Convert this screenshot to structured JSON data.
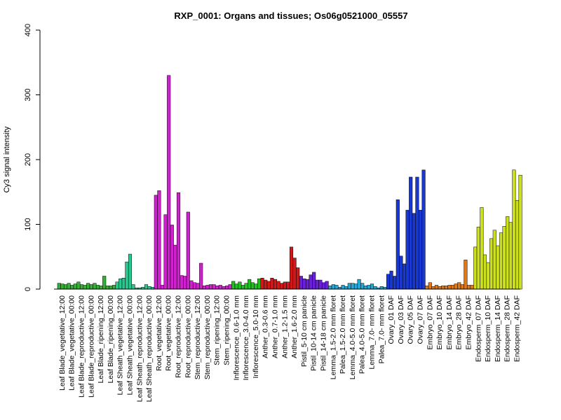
{
  "chart_data": {
    "type": "bar",
    "title": "RXP_0001: Organs and tissues; Os06g0521000_05557",
    "xlabel": "",
    "ylabel": "Cy3 signal intensity",
    "ylim": [
      0,
      400
    ],
    "yticks": [
      0,
      100,
      200,
      300,
      400
    ],
    "grid": false,
    "categories": [
      {
        "label": "Leaf Blade_vegetative_12:00",
        "values": [
          9,
          8,
          7
        ],
        "color": "#35b035"
      },
      {
        "label": "Leaf Blade_vegetative_00:00",
        "values": [
          9,
          6,
          8
        ],
        "color": "#35b035"
      },
      {
        "label": "Leaf Blade_reproductive_12:00",
        "values": [
          11,
          7,
          6
        ],
        "color": "#35b035"
      },
      {
        "label": "Leaf Blade_reproductive_00:00",
        "values": [
          9,
          7,
          9
        ],
        "color": "#35b035"
      },
      {
        "label": "Leaf Blade_ripening_12:00",
        "values": [
          6,
          5,
          20
        ],
        "color": "#35b035"
      },
      {
        "label": "Leaf Blade_ripening_00:00",
        "values": [
          5,
          5,
          6
        ],
        "color": "#35b035"
      },
      {
        "label": "Leaf Sheath_vegetative_12:00",
        "values": [
          11,
          16,
          17
        ],
        "color": "#28c890"
      },
      {
        "label": "Leaf Sheath_vegetative_00:00",
        "values": [
          42,
          54,
          7
        ],
        "color": "#28c890"
      },
      {
        "label": "Leaf Sheath_reproductive_12:00",
        "values": [
          2,
          2,
          3
        ],
        "color": "#28c890"
      },
      {
        "label": "Leaf Sheath_reproductive_00:00",
        "values": [
          7,
          4,
          3
        ],
        "color": "#28c890"
      },
      {
        "label": "Root_vegetative_12:00",
        "values": [
          145,
          152,
          6
        ],
        "color": "#d020d0"
      },
      {
        "label": "Root_vegetative_00:00",
        "values": [
          115,
          330,
          99
        ],
        "color": "#d020d0"
      },
      {
        "label": "Root_reproductive_12:00",
        "values": [
          68,
          149,
          21
        ],
        "color": "#d020d0"
      },
      {
        "label": "Root_reproductive_00:00",
        "values": [
          20,
          119,
          13
        ],
        "color": "#d020d0"
      },
      {
        "label": "Stem_reproductive_12:00",
        "values": [
          10,
          9,
          40
        ],
        "color": "#d020d0"
      },
      {
        "label": "Stem_reproductive_00:00",
        "values": [
          5,
          6,
          7
        ],
        "color": "#d020d0"
      },
      {
        "label": "Stem_ripening_12:00",
        "values": [
          7,
          5,
          6
        ],
        "color": "#d020d0"
      },
      {
        "label": "Stem_ripening_00:00",
        "values": [
          4,
          5,
          7
        ],
        "color": "#d020d0"
      },
      {
        "label": "Inflorescence_0.6-1.0 mm",
        "values": [
          12,
          8,
          11
        ],
        "color": "#22c022"
      },
      {
        "label": "Inflorescence_3.0-4.0 mm",
        "values": [
          6,
          9,
          15
        ],
        "color": "#22c022"
      },
      {
        "label": "Inflorescence_5.0-10 mm",
        "values": [
          10,
          8,
          16
        ],
        "color": "#22c022"
      },
      {
        "label": "Anther_0.3-0.6 mm",
        "values": [
          17,
          14,
          12
        ],
        "color": "#d01818"
      },
      {
        "label": "Anther_0.7-1.0 mm",
        "values": [
          17,
          15,
          12
        ],
        "color": "#d01818"
      },
      {
        "label": "Anther_1.2-1.5 mm",
        "values": [
          9,
          11,
          11
        ],
        "color": "#d01818"
      },
      {
        "label": "Anther_1.6-2.0 mm",
        "values": [
          65,
          48,
          33
        ],
        "color": "#d01818"
      },
      {
        "label": "Pistil_5-10 cm panicle",
        "values": [
          20,
          16,
          15
        ],
        "color": "#6a20d8"
      },
      {
        "label": "Pistil_10-14 cm panicle",
        "values": [
          22,
          26,
          14
        ],
        "color": "#6a20d8"
      },
      {
        "label": "Pistil_14-18 cm panicle",
        "values": [
          14,
          10,
          12
        ],
        "color": "#6a20d8"
      },
      {
        "label": "Lemma_1.5-2.0 mm floret",
        "values": [
          5,
          7,
          6
        ],
        "color": "#20a8d8"
      },
      {
        "label": "Palea_1.5-2.0 mm floret",
        "values": [
          3,
          6,
          4
        ],
        "color": "#20a8d8"
      },
      {
        "label": "Lemma_4.0-5.0 mm floret",
        "values": [
          9,
          9,
          8
        ],
        "color": "#20a8d8"
      },
      {
        "label": "Palea_4.0-5.0 mm floret",
        "values": [
          15,
          9,
          5
        ],
        "color": "#20a8d8"
      },
      {
        "label": "Lemma_7.0- mm floret",
        "values": [
          6,
          8,
          4
        ],
        "color": "#20a8d8"
      },
      {
        "label": "Palea_7.0- mm floret",
        "values": [
          2,
          4,
          3
        ],
        "color": "#20a8d8"
      },
      {
        "label": "Ovary_01 DAF",
        "values": [
          23,
          28,
          20
        ],
        "color": "#1838d0"
      },
      {
        "label": "Ovary_03 DAF",
        "values": [
          138,
          51,
          39
        ],
        "color": "#1838d0"
      },
      {
        "label": "Ovary_05 DAF",
        "values": [
          122,
          173,
          117
        ],
        "color": "#1838d0"
      },
      {
        "label": "Ovary_07 DAF",
        "values": [
          173,
          122,
          184
        ],
        "color": "#1838d0"
      },
      {
        "label": "Embryo_07 DAF",
        "values": [
          5,
          10,
          4
        ],
        "color": "#e07818"
      },
      {
        "label": "Embryo_10 DAF",
        "values": [
          6,
          4,
          5
        ],
        "color": "#e07818"
      },
      {
        "label": "Embryo_14 DAF",
        "values": [
          5,
          6,
          6
        ],
        "color": "#e07818"
      },
      {
        "label": "Embryo_28 DAF",
        "values": [
          8,
          10,
          7
        ],
        "color": "#e07818"
      },
      {
        "label": "Embryo_42 DAF",
        "values": [
          45,
          6,
          6
        ],
        "color": "#e07818"
      },
      {
        "label": "Endosperm_07 DAF",
        "values": [
          65,
          96,
          126
        ],
        "color": "#cce020"
      },
      {
        "label": "Endosperm_10 DAF",
        "values": [
          53,
          41,
          78
        ],
        "color": "#cce020"
      },
      {
        "label": "Endosperm_14 DAF",
        "values": [
          91,
          67,
          87
        ],
        "color": "#cce020"
      },
      {
        "label": "Endosperm_28 DAF",
        "values": [
          97,
          112,
          103
        ],
        "color": "#cce020"
      },
      {
        "label": "Endosperm_42 DAF",
        "values": [
          184,
          137,
          176
        ],
        "color": "#cce020"
      }
    ]
  }
}
